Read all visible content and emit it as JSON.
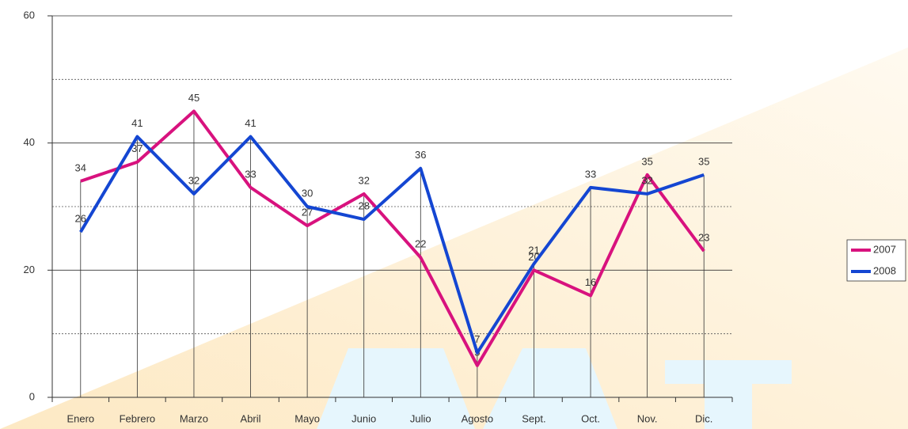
{
  "chart_data": {
    "type": "line",
    "categories": [
      "Enero",
      "Febrero",
      "Marzo",
      "Abril",
      "Mayo",
      "Junio",
      "Julio",
      "Agosto",
      "Sept.",
      "Oct.",
      "Nov.",
      "Dic."
    ],
    "series": [
      {
        "name": "2007",
        "color": "#d8127e",
        "values": [
          34,
          37,
          45,
          33,
          27,
          32,
          22,
          5,
          20,
          16,
          35,
          23
        ]
      },
      {
        "name": "2008",
        "color": "#1446d2",
        "values": [
          26,
          41,
          32,
          41,
          30,
          28,
          36,
          7,
          21,
          33,
          32,
          35
        ]
      }
    ],
    "ylim": [
      0,
      60
    ],
    "yticks": [
      0,
      20,
      40,
      60
    ],
    "minor_yticks": [
      10,
      30,
      50
    ],
    "grid": true,
    "legend": "right"
  }
}
